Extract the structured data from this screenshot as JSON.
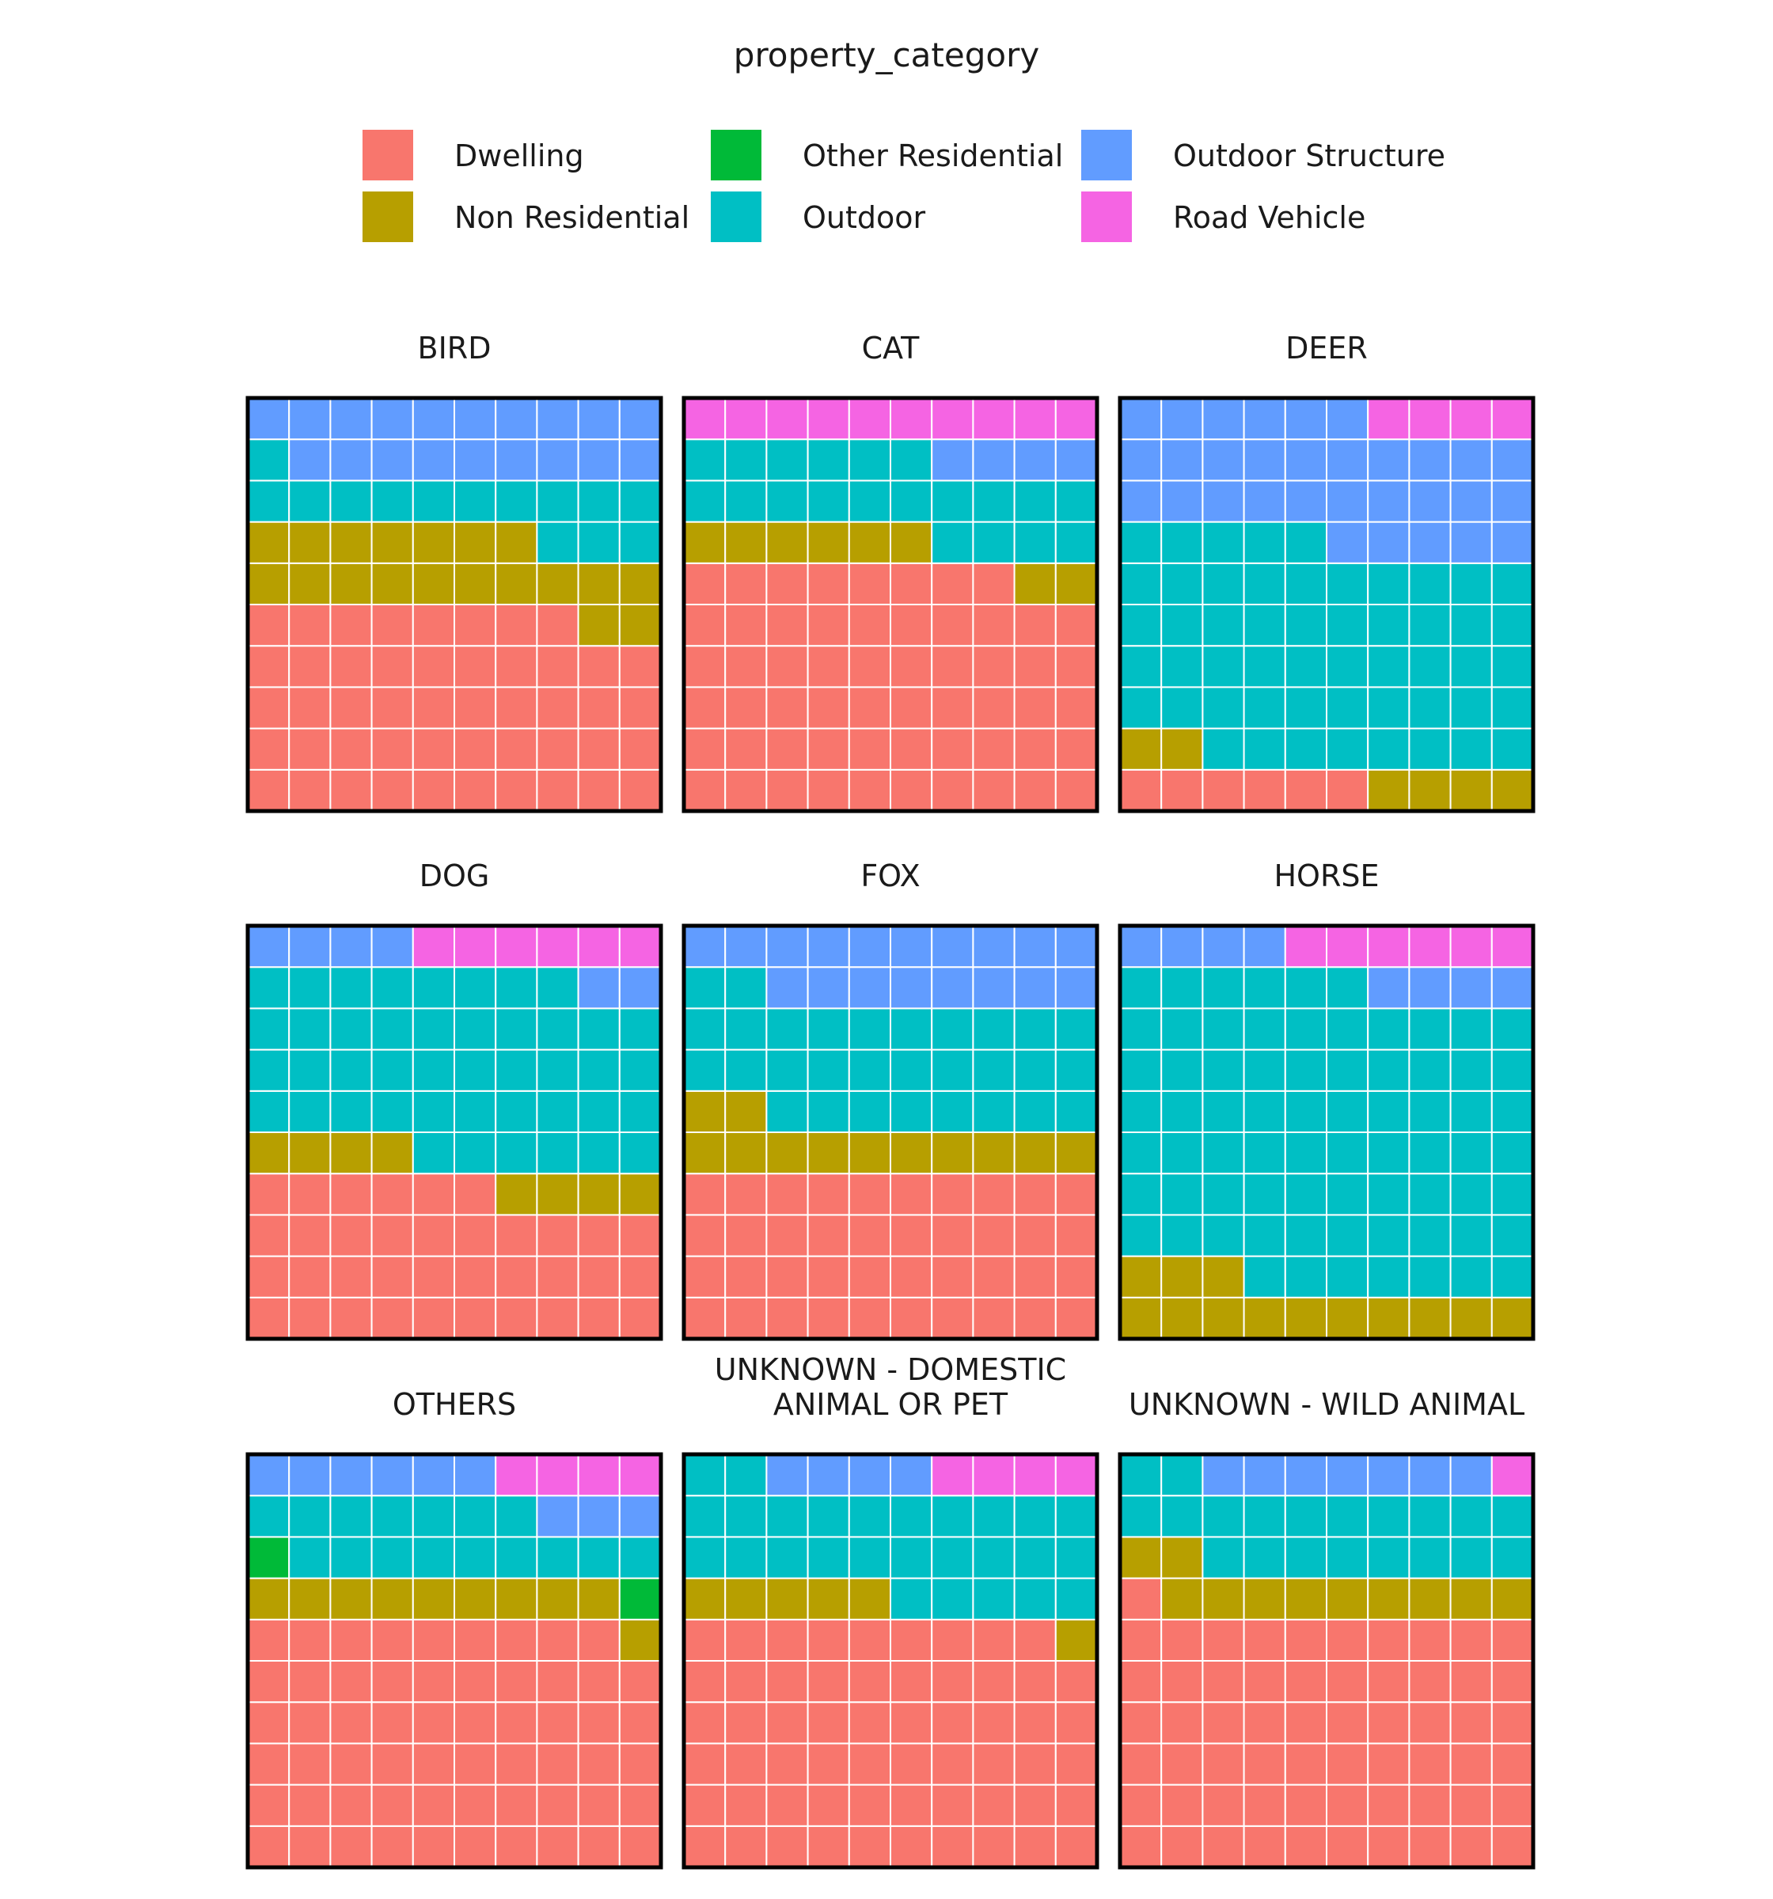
{
  "chart_data": {
    "type": "waffle",
    "legend_title": "property_category",
    "legend_position": "top",
    "grid": "10x10",
    "categories": [
      {
        "name": "Dwelling",
        "color": "#F8766D"
      },
      {
        "name": "Non Residential",
        "color": "#B79F00"
      },
      {
        "name": "Other Residential",
        "color": "#00BA38"
      },
      {
        "name": "Outdoor",
        "color": "#00BFC4"
      },
      {
        "name": "Outdoor Structure",
        "color": "#619CFF"
      },
      {
        "name": "Road Vehicle",
        "color": "#F564E3"
      }
    ],
    "panels": [
      {
        "title": "BIRD",
        "values": [
          48,
          19,
          0,
          14,
          19,
          0
        ]
      },
      {
        "title": "CAT",
        "values": [
          58,
          8,
          0,
          20,
          4,
          10
        ]
      },
      {
        "title": "DEER",
        "values": [
          6,
          6,
          0,
          53,
          31,
          4
        ]
      },
      {
        "title": "DOG",
        "values": [
          36,
          8,
          0,
          44,
          6,
          6
        ]
      },
      {
        "title": "FOX",
        "values": [
          40,
          12,
          0,
          30,
          18,
          0
        ]
      },
      {
        "title": "HORSE",
        "values": [
          0,
          13,
          0,
          73,
          8,
          6
        ]
      },
      {
        "title": "OTHERS",
        "values": [
          59,
          10,
          2,
          16,
          9,
          4
        ]
      },
      {
        "title": "UNKNOWN - DOMESTIC ANIMAL OR PET",
        "values": [
          59,
          6,
          0,
          27,
          4,
          4
        ]
      },
      {
        "title": "UNKNOWN - WILD ANIMAL",
        "values": [
          61,
          11,
          0,
          20,
          7,
          1
        ]
      }
    ]
  }
}
